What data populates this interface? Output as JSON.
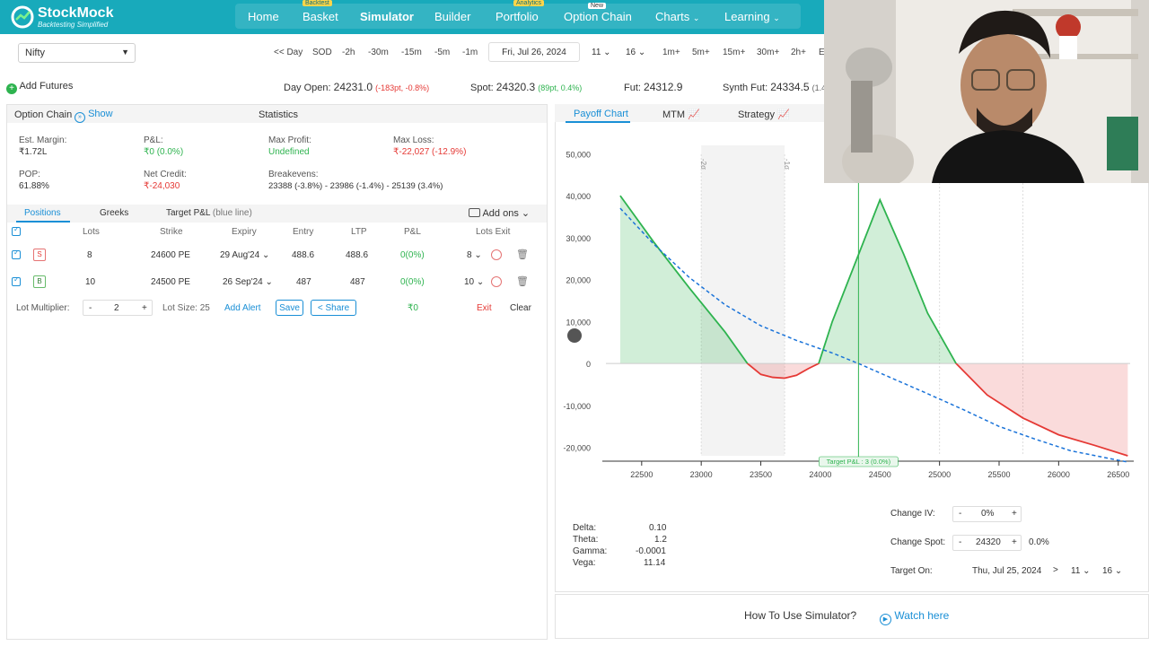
{
  "brand": {
    "name": "StockMock",
    "tagline": "Backtesting Simplified"
  },
  "nav": {
    "items": [
      {
        "label": "Home",
        "tag": ""
      },
      {
        "label": "Basket",
        "tag": "Backtest"
      },
      {
        "label": "Simulator",
        "tag": ""
      },
      {
        "label": "Builder",
        "tag": ""
      },
      {
        "label": "Portfolio",
        "tag": "Analytics"
      },
      {
        "label": "Option Chain",
        "tag": "New"
      },
      {
        "label": "Charts",
        "tag": ""
      },
      {
        "label": "Learning",
        "tag": ""
      }
    ],
    "active": "Simulator"
  },
  "toolbar": {
    "symbol": "Nifty",
    "buttons": [
      "<< Day",
      "SOD",
      "-2h",
      "-30m",
      "-15m",
      "-5m",
      "-1m"
    ],
    "date": "Fri, Jul 26, 2024",
    "hour": "11",
    "minute": "16",
    "forward_buttons": [
      "1m+",
      "5m+",
      "15m+",
      "30m+",
      "2h+",
      "E"
    ]
  },
  "info": {
    "add_futures": "Add Futures",
    "day_open_label": "Day Open:",
    "day_open_value": "24231.0",
    "day_open_change": "(-183pt, -0.8%)",
    "spot_label": "Spot:",
    "spot_value": "24320.3",
    "spot_change": "(89pt, 0.4%)",
    "fut_label": "Fut:",
    "fut_value": "24312.9",
    "synth_label": "Synth Fut:",
    "synth_value": "24334.5",
    "synth_change": "(1.4"
  },
  "left": {
    "option_chain": "Option Chain",
    "show": "Show",
    "statistics": "Statistics",
    "stats": {
      "est_margin_label": "Est. Margin:",
      "est_margin": "₹1.72L",
      "pnl_label": "P&L:",
      "pnl": "₹0 (0.0%)",
      "max_profit_label": "Max Profit:",
      "max_profit": "Undefined",
      "max_loss_label": "Max Loss:",
      "max_loss": "₹-22,027 (-12.9%)",
      "pop_label": "POP:",
      "pop": "61.88%",
      "net_credit_label": "Net Credit:",
      "net_credit": "₹-24,030",
      "breakevens_label": "Breakevens:",
      "be1": "23388",
      "be1_pct": "(-3.8%)",
      "be2": "23986",
      "be2_pct": "(-1.4%)",
      "be3": "25139",
      "be3_pct": "(3.4%)"
    },
    "tabs": [
      "Positions",
      "Greeks",
      "Target P&L"
    ],
    "target_note": "(blue line)",
    "add_ons": "Add ons",
    "columns": [
      "Lots",
      "Strike",
      "Expiry",
      "Entry",
      "LTP",
      "P&L",
      "Lots Exit"
    ],
    "positions": [
      {
        "side": "S",
        "lots": "8",
        "strike": "24600 PE",
        "expiry": "29 Aug'24",
        "entry": "488.6",
        "ltp": "488.6",
        "pnl": "0(0%)",
        "exit_lots": "8"
      },
      {
        "side": "B",
        "lots": "10",
        "strike": "24500 PE",
        "expiry": "26 Sep'24",
        "entry": "487",
        "ltp": "487",
        "pnl": "0(0%)",
        "exit_lots": "10"
      }
    ],
    "footer": {
      "lot_multiplier_label": "Lot Multiplier:",
      "minus": "-",
      "plus": "+",
      "lot_multiplier": "2",
      "lot_size": "Lot Size: 25",
      "add_alert": "Add Alert",
      "save": "Save",
      "share": "Share",
      "total_pnl": "₹0",
      "exit": "Exit",
      "clear": "Clear"
    }
  },
  "right": {
    "tabs": [
      "Payoff Chart",
      "MTM",
      "Strategy"
    ],
    "greeks": [
      {
        "label": "Delta:",
        "value": "0.10"
      },
      {
        "label": "Theta:",
        "value": "1.2"
      },
      {
        "label": "Gamma:",
        "value": "-0.0001"
      },
      {
        "label": "Vega:",
        "value": "11.14"
      }
    ],
    "change_iv_label": "Change IV:",
    "change_iv": "0%",
    "change_spot_label": "Change Spot:",
    "change_spot": "24320",
    "change_spot_pct": "0.0%",
    "target_on_label": "Target On:",
    "target_date": "Thu, Jul 25, 2024",
    "target_hour": "11",
    "target_minute": "16",
    "how_to": "How To Use Simulator?",
    "watch": "Watch here"
  },
  "chart_data": {
    "type": "line",
    "x_ticks": [
      22500,
      23000,
      23500,
      24000,
      24500,
      25000,
      25500,
      26000,
      26500
    ],
    "y_ticks": [
      50000,
      40000,
      30000,
      20000,
      10000,
      0,
      -10000,
      -20000
    ],
    "y_tick_labels": [
      "50,000",
      "40,000",
      "30,000",
      "20,000",
      "10,000",
      "0",
      "-10,000",
      "-20,000"
    ],
    "xlim": [
      22200,
      26600
    ],
    "ylim": [
      -22000,
      52000
    ],
    "sd_markers": [
      {
        "x": 23000,
        "label": "-2σ"
      },
      {
        "x": 23700,
        "label": "-1σ"
      }
    ],
    "spot_marker": 24320,
    "target_label": "Target P&L : 3 (0.0%)",
    "series": [
      {
        "name": "Expiry payoff",
        "color": "#2eb34f",
        "x": [
          22320,
          22600,
          22900,
          23200,
          23388,
          23500,
          23600,
          23700,
          23800,
          23900,
          23986,
          24100,
          24300,
          24500,
          24700,
          24900,
          25139,
          25400,
          25700,
          26000,
          26300,
          26580
        ],
        "y": [
          40000,
          29000,
          18000,
          7500,
          0,
          -2600,
          -3300,
          -3500,
          -2800,
          -1200,
          0,
          10000,
          24500,
          39000,
          26000,
          12000,
          0,
          -7500,
          -13000,
          -17000,
          -19500,
          -22000
        ]
      },
      {
        "name": "Target P&L",
        "color": "#1a73d9",
        "x": [
          22320,
          22600,
          22900,
          23200,
          23500,
          23800,
          24100,
          24320,
          24600,
          24900,
          25200,
          25500,
          25800,
          26100,
          26400,
          26580
        ],
        "y": [
          37000,
          28500,
          20500,
          14000,
          9000,
          5500,
          2500,
          0,
          -3500,
          -7200,
          -11000,
          -15000,
          -18000,
          -20800,
          -22500,
          -23500
        ]
      }
    ]
  }
}
